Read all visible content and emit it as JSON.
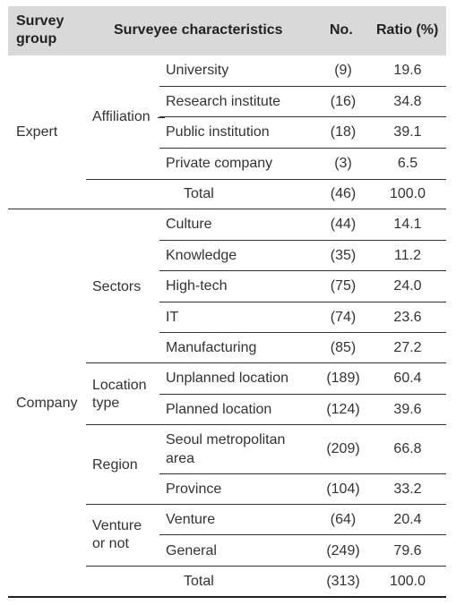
{
  "headers": {
    "group": "Survey group",
    "group_l1": "Survey",
    "group_l2": "group",
    "characteristics": "Surveyee characteristics",
    "no": "No.",
    "ratio": "Ratio (%)"
  },
  "expert": {
    "group": "Expert",
    "category": "Affiliation",
    "rows": [
      {
        "label": "University",
        "no": "(9)",
        "ratio": "19.6"
      },
      {
        "label": "Research institute",
        "no": "(16)",
        "ratio": "34.8"
      },
      {
        "label": "Public institution",
        "no": "(18)",
        "ratio": "39.1"
      },
      {
        "label": "Private company",
        "no": "(3)",
        "ratio": "6.5"
      }
    ],
    "total": {
      "label": "Total",
      "no": "(46)",
      "ratio": "100.0"
    }
  },
  "company": {
    "group": "Company",
    "sectors": {
      "category": "Sectors",
      "rows": [
        {
          "label": "Culture",
          "no": "(44)",
          "ratio": "14.1"
        },
        {
          "label": "Knowledge",
          "no": "(35)",
          "ratio": "11.2"
        },
        {
          "label": "High-tech",
          "no": "(75)",
          "ratio": "24.0"
        },
        {
          "label": "IT",
          "no": "(74)",
          "ratio": "23.6"
        },
        {
          "label": "Manufacturing",
          "no": "(85)",
          "ratio": "27.2"
        }
      ]
    },
    "location": {
      "category_l1": "Location",
      "category_l2": "type",
      "rows": [
        {
          "label": "Unplanned location",
          "no": "(189)",
          "ratio": "60.4"
        },
        {
          "label": "Planned location",
          "no": "(124)",
          "ratio": "39.6"
        }
      ]
    },
    "region": {
      "category": "Region",
      "rows": [
        {
          "label_l1": "Seoul metropolitan",
          "label_l2": "area",
          "no": "(209)",
          "ratio": "66.8"
        },
        {
          "label": "Province",
          "no": "(104)",
          "ratio": "33.2"
        }
      ]
    },
    "venture": {
      "category_l1": "Venture",
      "category_l2": "or not",
      "rows": [
        {
          "label": "Venture",
          "no": "(64)",
          "ratio": "20.4"
        },
        {
          "label": "General",
          "no": "(249)",
          "ratio": "79.6"
        }
      ]
    },
    "total": {
      "label": "Total",
      "no": "(313)",
      "ratio": "100.0"
    }
  }
}
